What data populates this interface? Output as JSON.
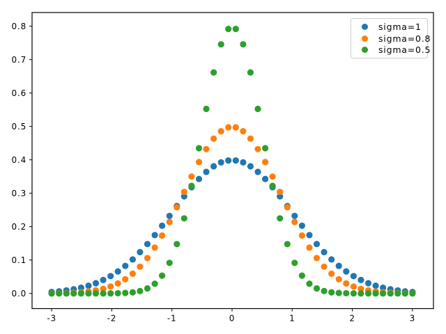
{
  "figure": {
    "background": "#ffffff",
    "plot_background": "#ffffff",
    "spine_color": "#000000"
  },
  "chart_data": {
    "type": "scatter",
    "title": "",
    "xlabel": "",
    "ylabel": "",
    "grid": false,
    "legend": {
      "position": "upper right",
      "border_color": "#cccccc",
      "background": "#ffffff"
    },
    "xlim": [
      -3.326,
      3.349
    ],
    "ylim": [
      -0.0454,
      0.841
    ],
    "xticks": {
      "values": [
        -3,
        -2,
        -1,
        0,
        1,
        2,
        3
      ],
      "labels": [
        "-3",
        "-2",
        "-1",
        "0",
        "1",
        "2",
        "3"
      ]
    },
    "yticks": {
      "values": [
        0.0,
        0.1,
        0.2,
        0.3,
        0.4,
        0.5,
        0.6,
        0.7,
        0.8
      ],
      "labels": [
        "0.0",
        "0.1",
        "0.2",
        "0.3",
        "0.4",
        "0.5",
        "0.6",
        "0.7",
        "0.8"
      ]
    },
    "marker": {
      "shape": "circle",
      "radius_px": 4.6
    },
    "x": [
      -3.0,
      -2.8776,
      -2.7551,
      -2.6327,
      -2.5102,
      -2.3878,
      -2.2653,
      -2.1429,
      -2.0204,
      -1.898,
      -1.7755,
      -1.6531,
      -1.5306,
      -1.4082,
      -1.2857,
      -1.1633,
      -1.0408,
      -0.9184,
      -0.7959,
      -0.6735,
      -0.551,
      -0.4286,
      -0.3061,
      -0.1837,
      -0.0612,
      0.0612,
      0.1837,
      0.3061,
      0.4286,
      0.551,
      0.6735,
      0.7959,
      0.9184,
      1.0408,
      1.1633,
      1.2857,
      1.4082,
      1.5306,
      1.6531,
      1.7755,
      1.898,
      2.0204,
      2.1429,
      2.2653,
      2.3878,
      2.5102,
      2.6327,
      2.7551,
      2.8776,
      3.0
    ],
    "series": [
      {
        "name": "sigma=1",
        "color": "#1f77b4",
        "values": [
          0.00443,
          0.00635,
          0.00896,
          0.01247,
          0.01709,
          0.02307,
          0.03067,
          0.04015,
          0.05184,
          0.06588,
          0.08248,
          0.10174,
          0.12365,
          0.14802,
          0.17457,
          0.2028,
          0.2321,
          0.26167,
          0.29064,
          0.31815,
          0.34276,
          0.36393,
          0.38068,
          0.39227,
          0.3982,
          0.3982,
          0.39227,
          0.38068,
          0.36393,
          0.34276,
          0.31815,
          0.29064,
          0.26167,
          0.2321,
          0.2028,
          0.17457,
          0.14802,
          0.12365,
          0.10174,
          0.08248,
          0.06588,
          0.05184,
          0.04015,
          0.03067,
          0.02307,
          0.01709,
          0.01247,
          0.00896,
          0.00635,
          0.00443
        ]
      },
      {
        "name": "sigma=0.8",
        "color": "#ff7f0e",
        "values": [
          0.00044,
          0.00077,
          0.00132,
          0.00222,
          0.00363,
          0.0058,
          0.00905,
          0.0138,
          0.02054,
          0.0299,
          0.04248,
          0.05896,
          0.07995,
          0.10593,
          0.13707,
          0.17327,
          0.21394,
          0.258,
          0.30401,
          0.34988,
          0.39338,
          0.432,
          0.46348,
          0.4857,
          0.49722,
          0.49722,
          0.4857,
          0.46348,
          0.432,
          0.39338,
          0.34988,
          0.30401,
          0.258,
          0.21394,
          0.17327,
          0.13707,
          0.10593,
          0.07995,
          0.05896,
          0.04248,
          0.0299,
          0.02054,
          0.0138,
          0.00905,
          0.0058,
          0.00363,
          0.00222,
          0.00132,
          0.00077,
          0.00044
        ]
      },
      {
        "name": "sigma=0.5",
        "color": "#2ca02c",
        "values": [
          0.0,
          0.0,
          0.0,
          0.0,
          0.0,
          1e-05,
          3e-05,
          8e-05,
          0.00023,
          0.00059,
          0.00146,
          0.00337,
          0.00737,
          0.01511,
          0.02923,
          0.05327,
          0.09145,
          0.1477,
          0.22475,
          0.32207,
          0.43477,
          0.55256,
          0.66154,
          0.74581,
          0.79193,
          0.79193,
          0.74581,
          0.66154,
          0.55256,
          0.43477,
          0.32207,
          0.22475,
          0.1477,
          0.09145,
          0.05327,
          0.02923,
          0.01511,
          0.00737,
          0.00337,
          0.00146,
          0.00059,
          0.00023,
          8e-05,
          3e-05,
          1e-05,
          0.0,
          0.0,
          0.0,
          0.0,
          0.0
        ]
      }
    ]
  }
}
